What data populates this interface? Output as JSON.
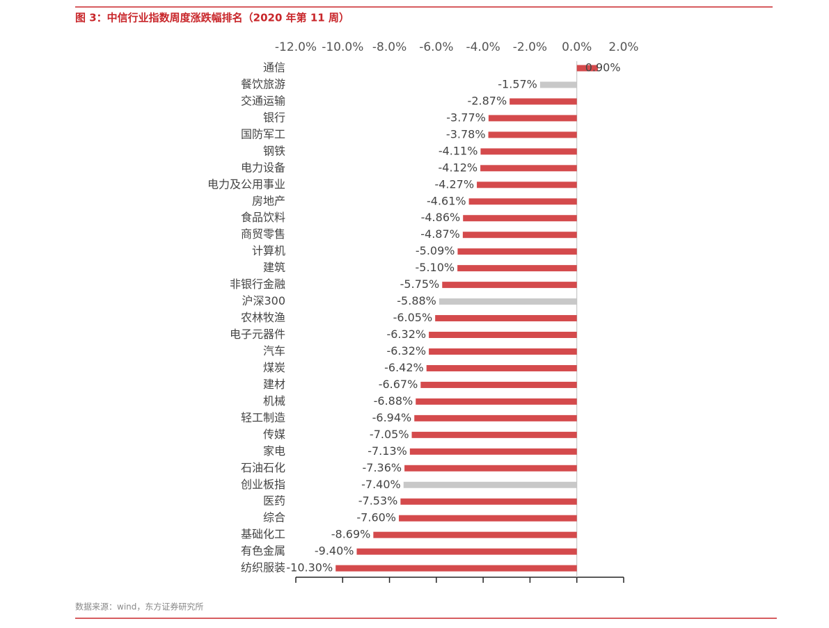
{
  "chart_data": {
    "type": "bar",
    "orientation": "horizontal",
    "title": "图 3：中信行业指数周度涨跌幅排名（2020 年第 11 周）",
    "source": "数据来源：wind，东方证券研究所",
    "categories": [
      "通信",
      "餐饮旅游",
      "交通运输",
      "银行",
      "国防军工",
      "钢铁",
      "电力设备",
      "电力及公用事业",
      "房地产",
      "食品饮料",
      "商贸零售",
      "计算机",
      "建筑",
      "非银行金融",
      "沪深300",
      "农林牧渔",
      "电子元器件",
      "汽车",
      "煤炭",
      "建材",
      "机械",
      "轻工制造",
      "传媒",
      "家电",
      "石油石化",
      "创业板指",
      "医药",
      "综合",
      "基础化工",
      "有色金属",
      "纺织服装"
    ],
    "values": [
      0.9,
      -1.57,
      -2.87,
      -3.77,
      -3.78,
      -4.11,
      -4.12,
      -4.27,
      -4.61,
      -4.86,
      -4.87,
      -5.09,
      -5.1,
      -5.75,
      -5.88,
      -6.05,
      -6.32,
      -6.32,
      -6.42,
      -6.67,
      -6.88,
      -6.94,
      -7.05,
      -7.13,
      -7.36,
      -7.4,
      -7.53,
      -7.6,
      -8.69,
      -9.4,
      -10.3
    ],
    "value_labels": [
      "0.90%",
      "-1.57%",
      "-2.87%",
      "-3.77%",
      "-3.78%",
      "-4.11%",
      "-4.12%",
      "-4.27%",
      "-4.61%",
      "-4.86%",
      "-4.87%",
      "-5.09%",
      "-5.10%",
      "-5.75%",
      "-5.88%",
      "-6.05%",
      "-6.32%",
      "-6.32%",
      "-6.42%",
      "-6.67%",
      "-6.88%",
      "-6.94%",
      "-7.05%",
      "-7.13%",
      "-7.36%",
      "-7.40%",
      "-7.53%",
      "-7.60%",
      "-8.69%",
      "-9.40%",
      "-10.30%"
    ],
    "colors": [
      "#d44a4c",
      "#c8c8c8",
      "#d44a4c",
      "#d44a4c",
      "#d44a4c",
      "#d44a4c",
      "#d44a4c",
      "#d44a4c",
      "#d44a4c",
      "#d44a4c",
      "#d44a4c",
      "#d44a4c",
      "#d44a4c",
      "#d44a4c",
      "#c8c8c8",
      "#d44a4c",
      "#d44a4c",
      "#d44a4c",
      "#d44a4c",
      "#d44a4c",
      "#d44a4c",
      "#d44a4c",
      "#d44a4c",
      "#d44a4c",
      "#d44a4c",
      "#c8c8c8",
      "#d44a4c",
      "#d44a4c",
      "#d44a4c",
      "#d44a4c",
      "#d44a4c"
    ],
    "xlim": [
      -12,
      2
    ],
    "xticks": [
      {
        "value": -12,
        "label": "-12.0%"
      },
      {
        "value": -10,
        "label": "-10.0%"
      },
      {
        "value": -8,
        "label": "-8.0%"
      },
      {
        "value": -6,
        "label": "-6.0%"
      },
      {
        "value": -4,
        "label": "-4.0%"
      },
      {
        "value": -2,
        "label": "-2.0%"
      },
      {
        "value": 0,
        "label": "0.0%"
      },
      {
        "value": 2,
        "label": "2.0%"
      }
    ]
  }
}
